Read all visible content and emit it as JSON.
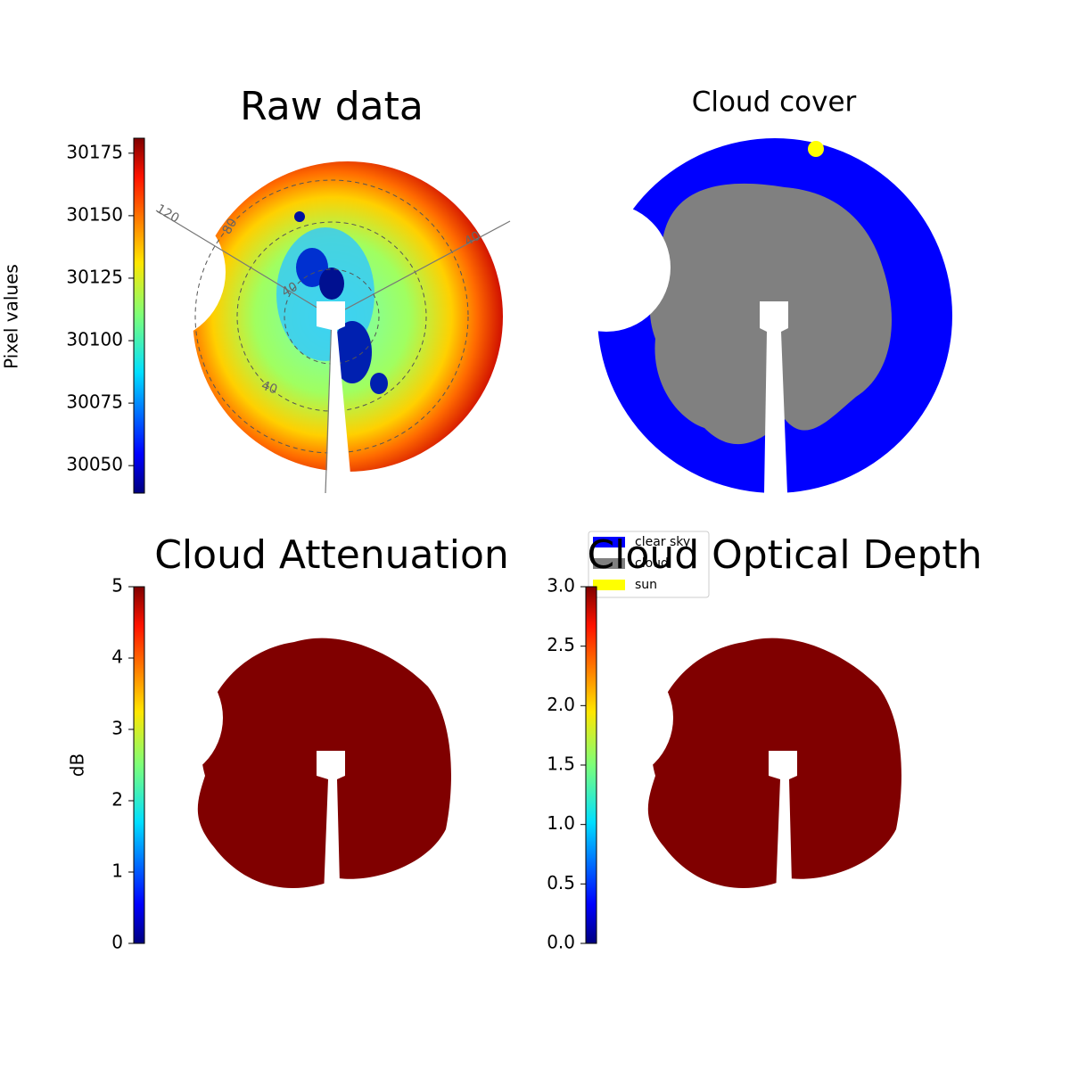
{
  "chart_data": [
    {
      "type": "image",
      "title": "Raw data",
      "colorbar_label": "Pixel values",
      "colormap": "jet",
      "clim": [
        30039,
        30181
      ],
      "cticks": [
        30050,
        30075,
        30100,
        30125,
        30150,
        30175
      ],
      "annotations": [
        "120",
        "80",
        "40",
        "40",
        "40"
      ]
    },
    {
      "type": "image",
      "title": "Cloud cover",
      "legend": [
        {
          "name": "clear sky",
          "color": "#0000ff"
        },
        {
          "name": "cloud",
          "color": "#808080"
        },
        {
          "name": "sun",
          "color": "#ffff00"
        }
      ]
    },
    {
      "type": "image",
      "title": "Cloud Attenuation",
      "colorbar_label": "dB",
      "colormap": "jet",
      "clim": [
        0,
        5
      ],
      "cticks": [
        0,
        1,
        2,
        3,
        4,
        5
      ]
    },
    {
      "type": "image",
      "title": "Cloud Optical Depth",
      "colormap": "jet",
      "clim": [
        0,
        3
      ],
      "cticks": [
        {
          "value": 0,
          "label": "0.0"
        },
        0.5,
        {
          "value": 1,
          "label": "1.0"
        },
        1.5,
        {
          "value": 2,
          "label": "2.0"
        },
        2.5,
        {
          "value": 3,
          "label": "3.0"
        }
      ]
    }
  ]
}
